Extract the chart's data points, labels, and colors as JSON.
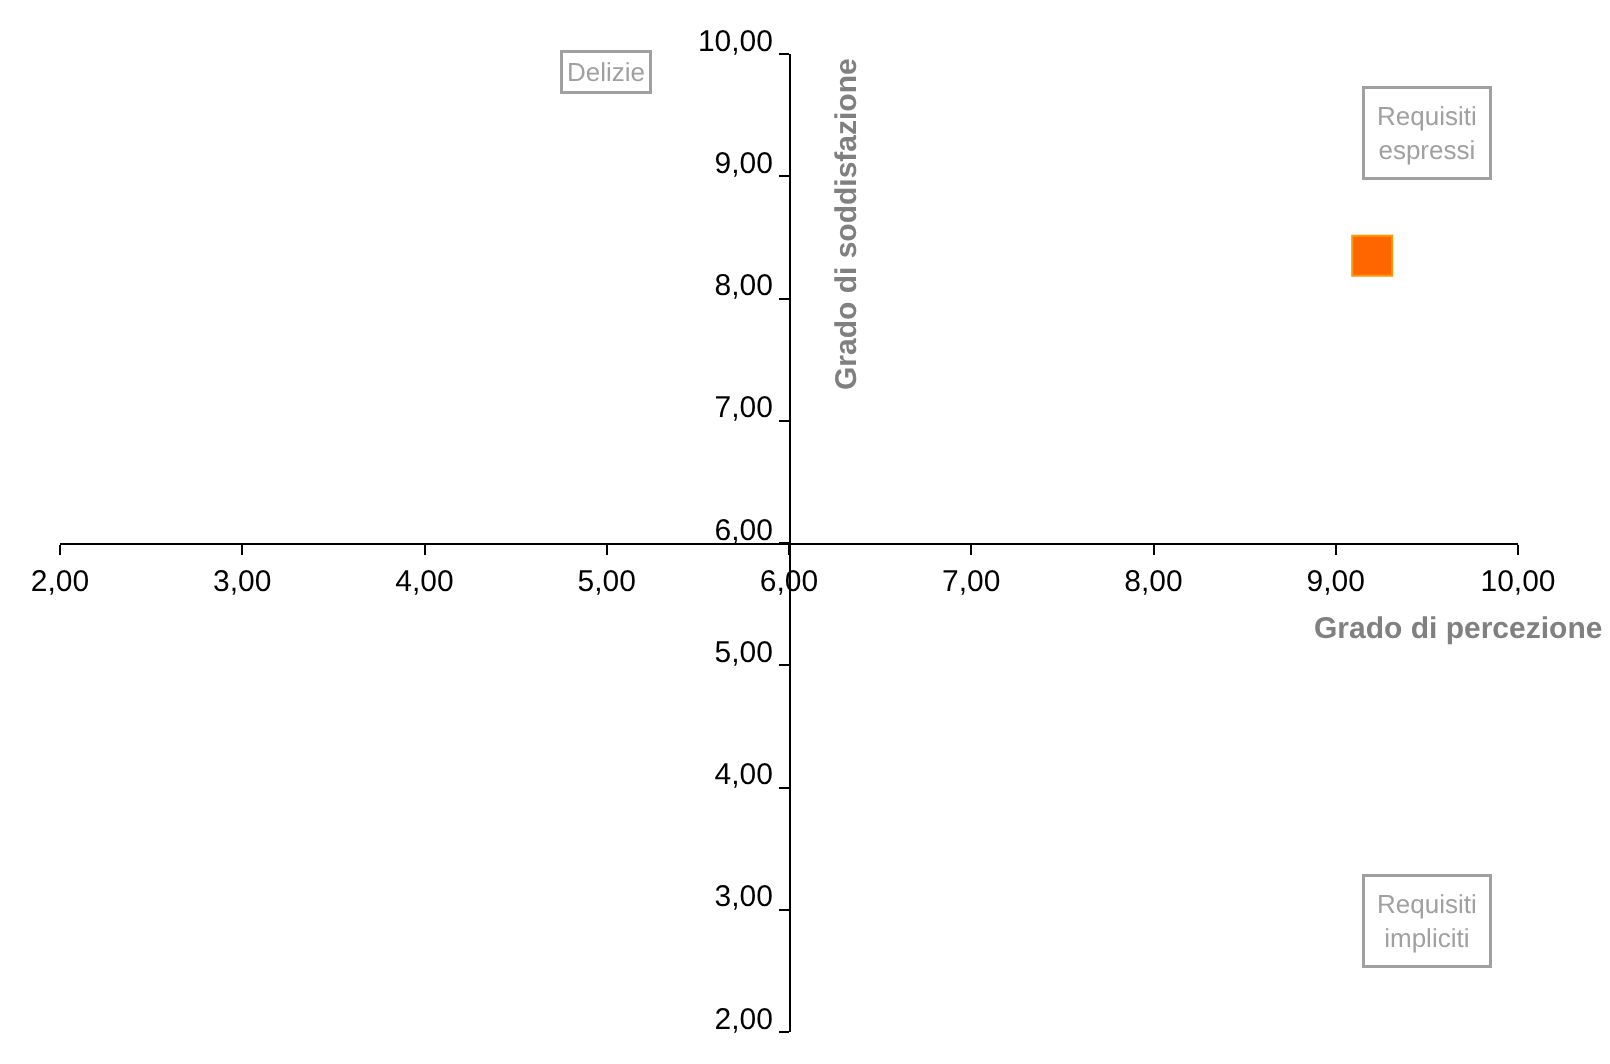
{
  "chart_data": {
    "type": "scatter",
    "xlabel": "Grado di percezione",
    "ylabel": "Grado di soddisfazione",
    "x": [
      9.2
    ],
    "series": [
      {
        "color": "#ff6600",
        "values": [
          8.35
        ]
      }
    ],
    "marker": "square",
    "xlim": [
      2,
      10
    ],
    "ylim": [
      2,
      10
    ],
    "xticks": [
      {
        "value": 2,
        "label": "2,00"
      },
      {
        "value": 3,
        "label": "3,00"
      },
      {
        "value": 4,
        "label": "4,00"
      },
      {
        "value": 5,
        "label": "5,00"
      },
      {
        "value": 6,
        "label": "6,00"
      },
      {
        "value": 7,
        "label": "7,00"
      },
      {
        "value": 8,
        "label": "8,00"
      },
      {
        "value": 9,
        "label": "9,00"
      },
      {
        "value": 10,
        "label": "10,00"
      }
    ],
    "yticks": [
      {
        "value": 2,
        "label": "2,00"
      },
      {
        "value": 3,
        "label": "3,00"
      },
      {
        "value": 4,
        "label": "4,00"
      },
      {
        "value": 5,
        "label": "5,00"
      },
      {
        "value": 6,
        "label": "6,00"
      },
      {
        "value": 7,
        "label": "7,00"
      },
      {
        "value": 8,
        "label": "8,00"
      },
      {
        "value": 9,
        "label": "9,00"
      },
      {
        "value": 10,
        "label": "10,00"
      }
    ],
    "annotations": [
      "Delizie",
      "Requisiti\nespressi",
      "Requisiti\nimpliciti"
    ]
  }
}
